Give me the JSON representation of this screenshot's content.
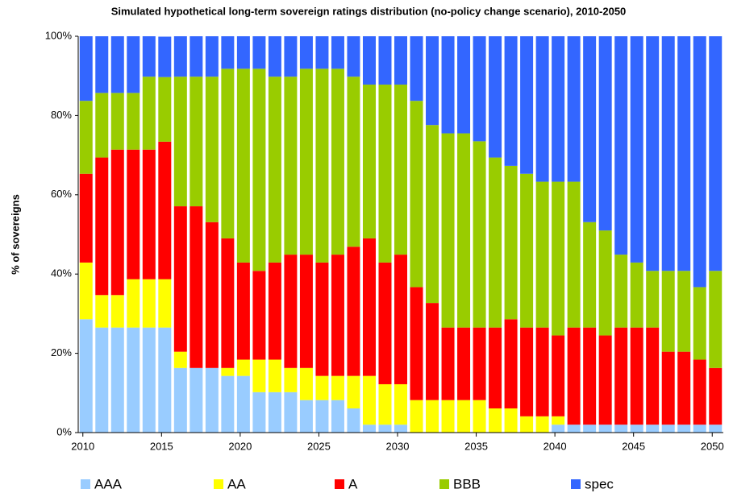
{
  "chart_data": {
    "type": "stacked-bar",
    "title": "Simulated hypothetical long-term sovereign ratings distribution (no-policy change scenario), 2010-2050",
    "ylabel": "% of sovereigns",
    "categories": [
      "2010",
      null,
      null,
      null,
      null,
      "2015",
      null,
      null,
      null,
      null,
      "2020",
      null,
      null,
      null,
      null,
      "2025",
      null,
      null,
      null,
      null,
      "2030",
      null,
      null,
      null,
      null,
      "2035",
      null,
      null,
      null,
      null,
      "2040",
      null,
      null,
      null,
      null,
      "2045",
      null,
      null,
      null,
      null,
      "2050"
    ],
    "ylim": [
      0,
      100
    ],
    "yticks": [
      {
        "value": 0,
        "label": "0%"
      },
      {
        "value": 20,
        "label": "20%"
      },
      {
        "value": 40,
        "label": "40%"
      },
      {
        "value": 60,
        "label": "60%"
      },
      {
        "value": 80,
        "label": "80%"
      },
      {
        "value": 100,
        "label": "100%"
      }
    ],
    "series": [
      {
        "name": "AAA",
        "color": "#99ccff",
        "values": [
          28.6,
          26.5,
          26.5,
          26.5,
          26.5,
          26.5,
          16.3,
          16.3,
          16.3,
          14.3,
          14.3,
          10.2,
          10.2,
          10.2,
          8.2,
          8.2,
          8.2,
          6.1,
          2.0,
          2.0,
          2.0,
          0,
          0,
          0,
          0,
          0,
          0,
          0,
          0,
          0,
          2.0,
          2.0,
          2.0,
          2.0,
          2.0,
          2.0,
          2.0,
          2.0,
          2.0,
          2.0,
          2.0
        ]
      },
      {
        "name": "AA",
        "color": "#ffff00",
        "values": [
          14.3,
          8.2,
          8.2,
          12.2,
          12.2,
          12.2,
          4.1,
          0,
          0,
          2.0,
          4.1,
          8.2,
          8.2,
          6.1,
          8.1,
          6.1,
          6.1,
          8.2,
          12.3,
          10.2,
          10.2,
          8.2,
          8.2,
          8.2,
          8.2,
          8.2,
          6.1,
          6.1,
          4.1,
          4.1,
          2.1,
          0,
          0,
          0,
          0,
          0,
          0,
          0,
          0,
          0,
          0
        ]
      },
      {
        "name": "A",
        "color": "#ff0000",
        "values": [
          22.4,
          34.7,
          36.7,
          32.7,
          32.7,
          34.7,
          36.7,
          40.8,
          36.8,
          32.7,
          24.5,
          22.4,
          24.5,
          28.6,
          28.6,
          28.6,
          30.6,
          32.6,
          34.7,
          30.7,
          32.7,
          28.5,
          24.5,
          18.3,
          18.3,
          18.3,
          20.4,
          22.5,
          22.4,
          22.4,
          20.4,
          24.5,
          24.5,
          22.5,
          24.5,
          24.5,
          24.5,
          18.4,
          18.4,
          16.4,
          14.3
        ]
      },
      {
        "name": "BBB",
        "color": "#99cc00",
        "values": [
          18.4,
          16.3,
          14.3,
          14.3,
          18.4,
          16.3,
          32.7,
          32.7,
          36.7,
          42.8,
          48.9,
          51.0,
          46.9,
          44.9,
          46.9,
          48.9,
          46.9,
          42.9,
          38.8,
          44.9,
          42.9,
          47.0,
          44.9,
          49.0,
          49.0,
          47.0,
          42.9,
          38.7,
          38.8,
          36.8,
          38.8,
          36.8,
          26.6,
          26.5,
          18.4,
          16.4,
          14.3,
          20.4,
          20.4,
          18.3,
          24.5
        ]
      },
      {
        "name": "spec",
        "color": "#3366ff",
        "values": [
          16.3,
          14.3,
          14.3,
          14.3,
          10.2,
          10.2,
          10.2,
          10.2,
          10.2,
          8.2,
          8.2,
          8.2,
          10.2,
          10.2,
          8.2,
          8.2,
          8.2,
          10.2,
          12.2,
          12.2,
          12.2,
          16.3,
          22.4,
          24.5,
          24.5,
          26.5,
          30.6,
          32.7,
          34.7,
          36.7,
          36.7,
          36.7,
          46.9,
          49.0,
          55.1,
          57.1,
          59.2,
          59.2,
          59.2,
          63.3,
          59.2
        ]
      }
    ]
  }
}
